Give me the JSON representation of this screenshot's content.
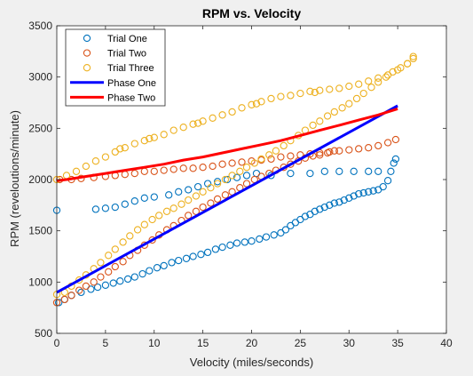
{
  "chart_data": {
    "type": "scatter",
    "title": "RPM vs. Velocity",
    "xlabel": "Velocity (miles/seconds)",
    "ylabel": "RPM (reveloutions/minute)",
    "xlim": [
      0,
      40
    ],
    "ylim": [
      500,
      3500
    ],
    "xticks": [
      "0",
      "5",
      "10",
      "15",
      "20",
      "25",
      "30",
      "35",
      "40"
    ],
    "yticks": [
      "500",
      "1000",
      "1500",
      "2000",
      "2500",
      "3000",
      "3500"
    ],
    "grid": false,
    "legend_position": "top-left",
    "colors": {
      "trial_one": "#0072BD",
      "trial_two": "#D95319",
      "trial_three": "#EDB120",
      "phase_one": "#0000FF",
      "phase_two": "#FF0000",
      "plot_background": "#ffffff",
      "figure_background": "#f0f0f0"
    },
    "series": [
      {
        "name": "Trial One",
        "type": "scatter",
        "marker": "circle",
        "points": [
          [
            0,
            1700
          ],
          [
            0.2,
            800
          ],
          [
            0.8,
            830
          ],
          [
            1.5,
            870
          ],
          [
            2.5,
            900
          ],
          [
            3.5,
            930
          ],
          [
            4.2,
            950
          ],
          [
            5,
            970
          ],
          [
            5.8,
            990
          ],
          [
            6.5,
            1010
          ],
          [
            7.3,
            1030
          ],
          [
            8,
            1050
          ],
          [
            8.8,
            1080
          ],
          [
            9.5,
            1110
          ],
          [
            10.3,
            1140
          ],
          [
            11,
            1160
          ],
          [
            11.8,
            1190
          ],
          [
            12.5,
            1210
          ],
          [
            13.3,
            1230
          ],
          [
            14,
            1250
          ],
          [
            14.8,
            1270
          ],
          [
            15.5,
            1290
          ],
          [
            16.3,
            1320
          ],
          [
            17,
            1340
          ],
          [
            17.8,
            1360
          ],
          [
            18.5,
            1380
          ],
          [
            19.3,
            1390
          ],
          [
            20,
            1400
          ],
          [
            20.8,
            1420
          ],
          [
            21.5,
            1440
          ],
          [
            22.3,
            1460
          ],
          [
            23,
            1480
          ],
          [
            23.5,
            1510
          ],
          [
            24,
            1550
          ],
          [
            24.5,
            1580
          ],
          [
            25,
            1610
          ],
          [
            25.5,
            1640
          ],
          [
            26,
            1660
          ],
          [
            26.5,
            1690
          ],
          [
            27,
            1710
          ],
          [
            27.5,
            1730
          ],
          [
            28,
            1750
          ],
          [
            28.5,
            1770
          ],
          [
            29,
            1780
          ],
          [
            29.5,
            1800
          ],
          [
            30,
            1820
          ],
          [
            30.5,
            1840
          ],
          [
            31,
            1860
          ],
          [
            31.5,
            1870
          ],
          [
            32,
            1880
          ],
          [
            32.5,
            1890
          ],
          [
            33,
            1900
          ],
          [
            33.5,
            1930
          ],
          [
            34,
            1990
          ],
          [
            34.3,
            2080
          ],
          [
            34.6,
            2160
          ],
          [
            34.8,
            2200
          ],
          [
            4,
            1710
          ],
          [
            5,
            1720
          ],
          [
            6,
            1730
          ],
          [
            7,
            1760
          ],
          [
            8,
            1790
          ],
          [
            9,
            1820
          ],
          [
            10,
            1830
          ],
          [
            11.5,
            1850
          ],
          [
            12.5,
            1880
          ],
          [
            13.5,
            1900
          ],
          [
            14.5,
            1930
          ],
          [
            15.5,
            1960
          ],
          [
            16.5,
            1980
          ],
          [
            17.5,
            2000
          ],
          [
            18.5,
            2020
          ],
          [
            19.5,
            2040
          ],
          [
            20.5,
            2060
          ],
          [
            22,
            2040
          ],
          [
            24,
            2060
          ],
          [
            26,
            2060
          ],
          [
            27.5,
            2080
          ],
          [
            29,
            2080
          ],
          [
            30.5,
            2080
          ],
          [
            32,
            2080
          ],
          [
            33,
            2080
          ]
        ]
      },
      {
        "name": "Trial Two",
        "type": "scatter",
        "marker": "circle",
        "points": [
          [
            0,
            800
          ],
          [
            0.8,
            830
          ],
          [
            1.5,
            870
          ],
          [
            2.3,
            920
          ],
          [
            3,
            960
          ],
          [
            3.8,
            1000
          ],
          [
            4.5,
            1050
          ],
          [
            5.3,
            1100
          ],
          [
            6,
            1150
          ],
          [
            6.8,
            1200
          ],
          [
            7.5,
            1260
          ],
          [
            8.3,
            1310
          ],
          [
            9,
            1360
          ],
          [
            9.8,
            1410
          ],
          [
            10.5,
            1460
          ],
          [
            11.3,
            1510
          ],
          [
            12,
            1550
          ],
          [
            12.8,
            1600
          ],
          [
            13.5,
            1650
          ],
          [
            14.3,
            1690
          ],
          [
            15,
            1730
          ],
          [
            15.8,
            1770
          ],
          [
            16.5,
            1810
          ],
          [
            17.3,
            1850
          ],
          [
            18,
            1880
          ],
          [
            18.8,
            1920
          ],
          [
            19.5,
            1960
          ],
          [
            20.3,
            2000
          ],
          [
            21,
            2030
          ],
          [
            21.8,
            2060
          ],
          [
            22.5,
            2090
          ],
          [
            23.3,
            2120
          ],
          [
            24,
            2150
          ],
          [
            24.8,
            2180
          ],
          [
            25.5,
            2210
          ],
          [
            26.3,
            2230
          ],
          [
            27,
            2240
          ],
          [
            27.8,
            2260
          ],
          [
            28.5,
            2280
          ],
          [
            0.3,
            2000
          ],
          [
            1.5,
            2000
          ],
          [
            2.5,
            2010
          ],
          [
            3.8,
            2020
          ],
          [
            5,
            2030
          ],
          [
            6,
            2040
          ],
          [
            7,
            2050
          ],
          [
            8,
            2060
          ],
          [
            9,
            2080
          ],
          [
            10,
            2080
          ],
          [
            11,
            2090
          ],
          [
            12,
            2100
          ],
          [
            13,
            2110
          ],
          [
            14,
            2110
          ],
          [
            15,
            2120
          ],
          [
            16,
            2130
          ],
          [
            17,
            2150
          ],
          [
            18,
            2160
          ],
          [
            19,
            2170
          ],
          [
            20,
            2180
          ],
          [
            21,
            2190
          ],
          [
            22,
            2200
          ],
          [
            23,
            2220
          ],
          [
            24,
            2230
          ],
          [
            25,
            2240
          ],
          [
            26,
            2250
          ],
          [
            27,
            2260
          ],
          [
            28,
            2270
          ],
          [
            29,
            2280
          ],
          [
            30,
            2290
          ],
          [
            31,
            2300
          ],
          [
            32,
            2310
          ],
          [
            33,
            2330
          ],
          [
            34,
            2360
          ],
          [
            34.8,
            2390
          ]
        ]
      },
      {
        "name": "Trial Three",
        "type": "scatter",
        "marker": "circle",
        "points": [
          [
            0,
            880
          ],
          [
            0.8,
            900
          ],
          [
            1.5,
            960
          ],
          [
            2.3,
            1020
          ],
          [
            3,
            1070
          ],
          [
            3.8,
            1130
          ],
          [
            4.5,
            1190
          ],
          [
            5.3,
            1260
          ],
          [
            6,
            1320
          ],
          [
            6.8,
            1390
          ],
          [
            7.5,
            1450
          ],
          [
            8.3,
            1510
          ],
          [
            9,
            1560
          ],
          [
            9.8,
            1610
          ],
          [
            10.5,
            1650
          ],
          [
            11.3,
            1690
          ],
          [
            12,
            1720
          ],
          [
            12.8,
            1760
          ],
          [
            13.5,
            1800
          ],
          [
            14.3,
            1840
          ],
          [
            15,
            1880
          ],
          [
            15.8,
            1920
          ],
          [
            16.5,
            1960
          ],
          [
            17.3,
            2000
          ],
          [
            18,
            2040
          ],
          [
            18.8,
            2080
          ],
          [
            19.5,
            2120
          ],
          [
            20.3,
            2160
          ],
          [
            21,
            2200
          ],
          [
            21.8,
            2240
          ],
          [
            22.5,
            2280
          ],
          [
            23.3,
            2330
          ],
          [
            24,
            2380
          ],
          [
            24.8,
            2430
          ],
          [
            25.5,
            2480
          ],
          [
            26.3,
            2530
          ],
          [
            27,
            2570
          ],
          [
            27.8,
            2620
          ],
          [
            28.5,
            2660
          ],
          [
            29.3,
            2700
          ],
          [
            30,
            2740
          ],
          [
            30.8,
            2790
          ],
          [
            31.5,
            2840
          ],
          [
            32.3,
            2900
          ],
          [
            33,
            2950
          ],
          [
            33.8,
            3000
          ],
          [
            34.5,
            3050
          ],
          [
            35.3,
            3090
          ],
          [
            36,
            3130
          ],
          [
            36.6,
            3180
          ],
          [
            0,
            2000
          ],
          [
            1,
            2040
          ],
          [
            2,
            2080
          ],
          [
            3,
            2130
          ],
          [
            4,
            2180
          ],
          [
            5,
            2220
          ],
          [
            6,
            2270
          ],
          [
            7,
            2310
          ],
          [
            8,
            2350
          ],
          [
            9,
            2380
          ],
          [
            10,
            2410
          ],
          [
            11,
            2440
          ],
          [
            12,
            2480
          ],
          [
            13,
            2510
          ],
          [
            14,
            2540
          ],
          [
            15,
            2570
          ],
          [
            16,
            2600
          ],
          [
            17,
            2630
          ],
          [
            18,
            2660
          ],
          [
            19,
            2700
          ],
          [
            20,
            2730
          ],
          [
            21,
            2760
          ],
          [
            22,
            2790
          ],
          [
            23,
            2810
          ],
          [
            24,
            2820
          ],
          [
            25,
            2840
          ],
          [
            26,
            2860
          ],
          [
            27,
            2870
          ],
          [
            28,
            2880
          ],
          [
            29,
            2890
          ],
          [
            30,
            2910
          ],
          [
            31,
            2930
          ],
          [
            32,
            2960
          ],
          [
            33,
            2990
          ],
          [
            34,
            3020
          ],
          [
            35,
            3070
          ],
          [
            36,
            3130
          ],
          [
            36.6,
            3200
          ],
          [
            6.5,
            2300
          ],
          [
            9.5,
            2400
          ],
          [
            14.5,
            2550
          ],
          [
            20.5,
            2740
          ],
          [
            26.5,
            2850
          ]
        ]
      },
      {
        "name": "Phase One",
        "type": "line",
        "x": [
          0,
          35
        ],
        "y": [
          900,
          2720
        ]
      },
      {
        "name": "Phase Two",
        "type": "line",
        "x": [
          0,
          1,
          3,
          5,
          7,
          9,
          11,
          13,
          15,
          17,
          19,
          21,
          23,
          25,
          27,
          29,
          31,
          33,
          35
        ],
        "y": [
          1990,
          2000,
          2030,
          2060,
          2090,
          2120,
          2150,
          2190,
          2220,
          2260,
          2300,
          2340,
          2380,
          2430,
          2480,
          2530,
          2580,
          2630,
          2690
        ]
      }
    ]
  }
}
